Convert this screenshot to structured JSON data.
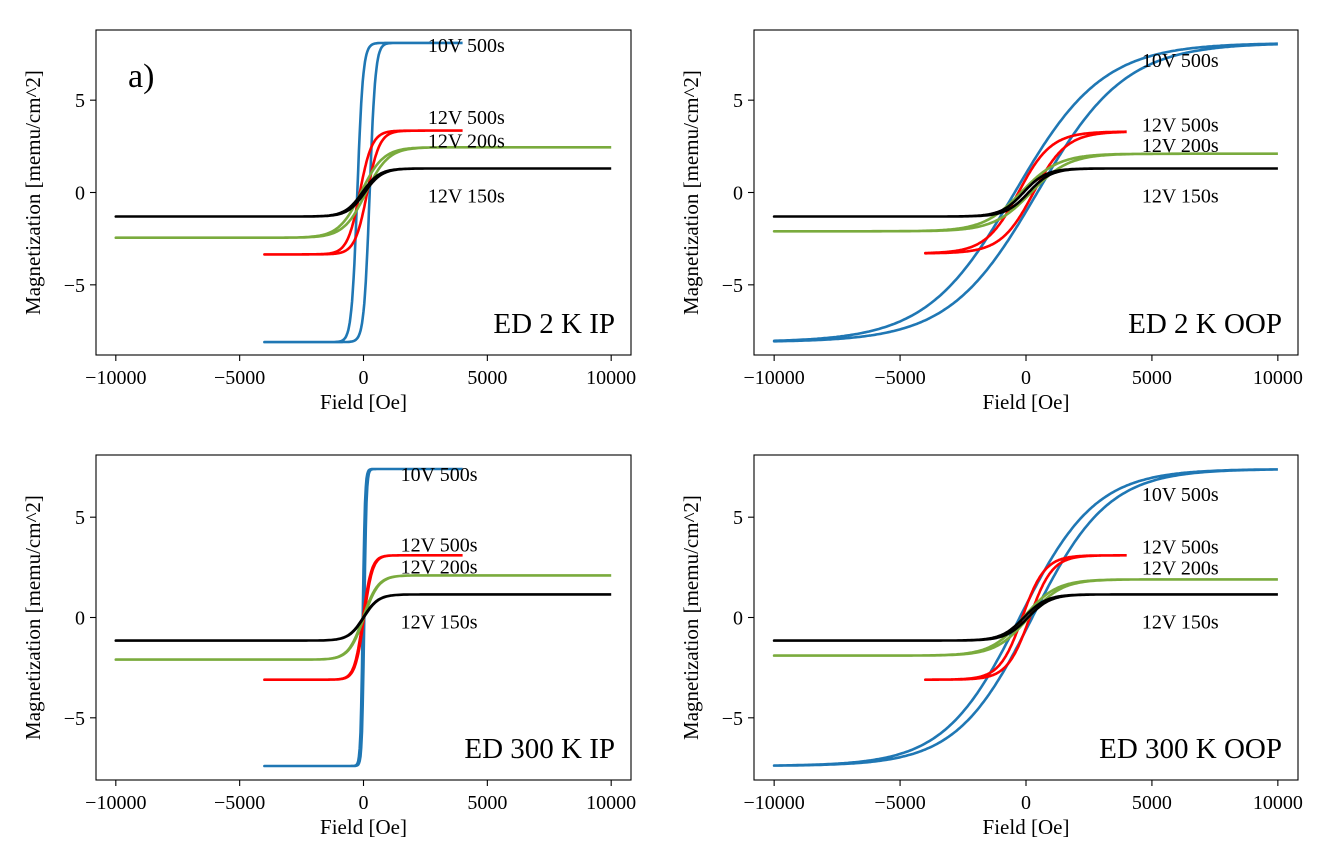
{
  "chart_data": [
    {
      "type": "line",
      "panel_letter": "a)",
      "title": "ED 2 K IP",
      "xlabel": "Field [Oe]",
      "ylabel": "Magnetization [memu/cm^2]",
      "xlim": [
        -10800,
        10800
      ],
      "ylim": [
        -8.8,
        8.8
      ],
      "xticks": [
        -10000,
        -5000,
        0,
        5000,
        10000
      ],
      "xtick_labels": [
        "−10000",
        "−5000",
        "0",
        "5000",
        "10000"
      ],
      "yticks": [
        -5,
        0,
        5
      ],
      "ytick_labels": [
        "−5",
        "0",
        "5"
      ],
      "grid": false,
      "series": [
        {
          "name": "10V 500s",
          "label": "10V 500s",
          "label_at": [
            2600,
            7.6
          ],
          "color": "#1f77b4",
          "ms": 8.1,
          "hc": 250,
          "w": 230,
          "xmin": -4000,
          "xmax": 4000
        },
        {
          "name": "12V 500s",
          "label": "12V 500s",
          "label_at": [
            2600,
            3.7
          ],
          "color": "#ff0000",
          "ms": 3.35,
          "hc": 150,
          "w": 500,
          "xmin": -4000,
          "xmax": 4000
        },
        {
          "name": "12V 200s",
          "label": "12V 200s",
          "label_at": [
            2600,
            2.45
          ],
          "color": "#7aab3d",
          "ms": 2.45,
          "hc": 100,
          "w": 900,
          "xmin": -10000,
          "xmax": 10000
        },
        {
          "name": "12V 150s",
          "label": "12V 150s",
          "label_at": [
            2600,
            -0.55
          ],
          "color": "#000000",
          "ms": 1.3,
          "hc": 50,
          "w": 700,
          "xmin": -10000,
          "xmax": 10000
        }
      ]
    },
    {
      "type": "line",
      "title": "ED 2 K OOP",
      "xlabel": "Field [Oe]",
      "ylabel": "Magnetization [memu/cm^2]",
      "xlim": [
        -10800,
        10800
      ],
      "ylim": [
        -8.8,
        8.8
      ],
      "xticks": [
        -10000,
        -5000,
        0,
        5000,
        10000
      ],
      "xtick_labels": [
        "−10000",
        "−5000",
        "0",
        "5000",
        "10000"
      ],
      "yticks": [
        -5,
        0,
        5
      ],
      "ytick_labels": [
        "−5",
        "0",
        "5"
      ],
      "grid": false,
      "series": [
        {
          "name": "10V 500s",
          "label": "10V 500s",
          "label_at": [
            4600,
            6.8
          ],
          "color": "#1f77b4",
          "ms": 8.1,
          "hc": 450,
          "w": 3500,
          "xmin": -10000,
          "xmax": 10000
        },
        {
          "name": "12V 500s",
          "label": "12V 500s",
          "label_at": [
            4600,
            3.3
          ],
          "color": "#ff0000",
          "ms": 3.3,
          "hc": 300,
          "w": 1300,
          "xmin": -4000,
          "xmax": 4000
        },
        {
          "name": "12V 200s",
          "label": "12V 200s",
          "label_at": [
            4600,
            2.2
          ],
          "color": "#7aab3d",
          "ms": 2.1,
          "hc": 200,
          "w": 1500,
          "xmin": -10000,
          "xmax": 10000
        },
        {
          "name": "12V 150s",
          "label": "12V 150s",
          "label_at": [
            4600,
            -0.55
          ],
          "color": "#000000",
          "ms": 1.3,
          "hc": 100,
          "w": 900,
          "xmin": -10000,
          "xmax": 10000
        }
      ]
    },
    {
      "type": "line",
      "title": "ED 300 K IP",
      "xlabel": "Field [Oe]",
      "ylabel": "Magnetization [memu/cm^2]",
      "xlim": [
        -10800,
        10800
      ],
      "ylim": [
        -8.1,
        8.1
      ],
      "xticks": [
        -10000,
        -5000,
        0,
        5000,
        10000
      ],
      "xtick_labels": [
        "−10000",
        "−5000",
        "0",
        "5000",
        "10000"
      ],
      "yticks": [
        -5,
        0,
        5
      ],
      "ytick_labels": [
        "−5",
        "0",
        "5"
      ],
      "grid": false,
      "series": [
        {
          "name": "10V 500s",
          "label": "10V 500s",
          "label_at": [
            1500,
            6.8
          ],
          "color": "#1f77b4",
          "ms": 7.4,
          "hc": 30,
          "w": 90,
          "xmin": -4000,
          "xmax": 4000
        },
        {
          "name": "12V 500s",
          "label": "12V 500s",
          "label_at": [
            1500,
            3.3
          ],
          "color": "#ff0000",
          "ms": 3.1,
          "hc": 20,
          "w": 350,
          "xmin": -4000,
          "xmax": 4000
        },
        {
          "name": "12V 200s",
          "label": "12V 200s",
          "label_at": [
            1500,
            2.2
          ],
          "color": "#7aab3d",
          "ms": 2.1,
          "hc": 15,
          "w": 600,
          "xmin": -10000,
          "xmax": 10000
        },
        {
          "name": "12V 150s",
          "label": "12V 150s",
          "label_at": [
            1500,
            -0.55
          ],
          "color": "#000000",
          "ms": 1.15,
          "hc": 10,
          "w": 600,
          "xmin": -10000,
          "xmax": 10000
        }
      ]
    },
    {
      "type": "line",
      "title": "ED 300 K OOP",
      "xlabel": "Field [Oe]",
      "ylabel": "Magnetization [memu/cm^2]",
      "xlim": [
        -10800,
        10800
      ],
      "ylim": [
        -8.1,
        8.1
      ],
      "xticks": [
        -10000,
        -5000,
        0,
        5000,
        10000
      ],
      "xtick_labels": [
        "−10000",
        "−5000",
        "0",
        "5000",
        "10000"
      ],
      "yticks": [
        -5,
        0,
        5
      ],
      "ytick_labels": [
        "−5",
        "0",
        "5"
      ],
      "grid": false,
      "series": [
        {
          "name": "10V 500s",
          "label": "10V 500s",
          "label_at": [
            4600,
            5.8
          ],
          "color": "#1f77b4",
          "ms": 7.4,
          "hc": 250,
          "w": 3000,
          "xmin": -10000,
          "xmax": 10000
        },
        {
          "name": "12V 500s",
          "label": "12V 500s",
          "label_at": [
            4600,
            3.2
          ],
          "color": "#ff0000",
          "ms": 3.1,
          "hc": 150,
          "w": 900,
          "xmin": -4000,
          "xmax": 4000
        },
        {
          "name": "12V 200s",
          "label": "12V 200s",
          "label_at": [
            4600,
            2.15
          ],
          "color": "#7aab3d",
          "ms": 1.9,
          "hc": 100,
          "w": 1300,
          "xmin": -10000,
          "xmax": 10000
        },
        {
          "name": "12V 150s",
          "label": "12V 150s",
          "label_at": [
            4600,
            -0.55
          ],
          "color": "#000000",
          "ms": 1.15,
          "hc": 80,
          "w": 900,
          "xmin": -10000,
          "xmax": 10000
        }
      ]
    }
  ]
}
